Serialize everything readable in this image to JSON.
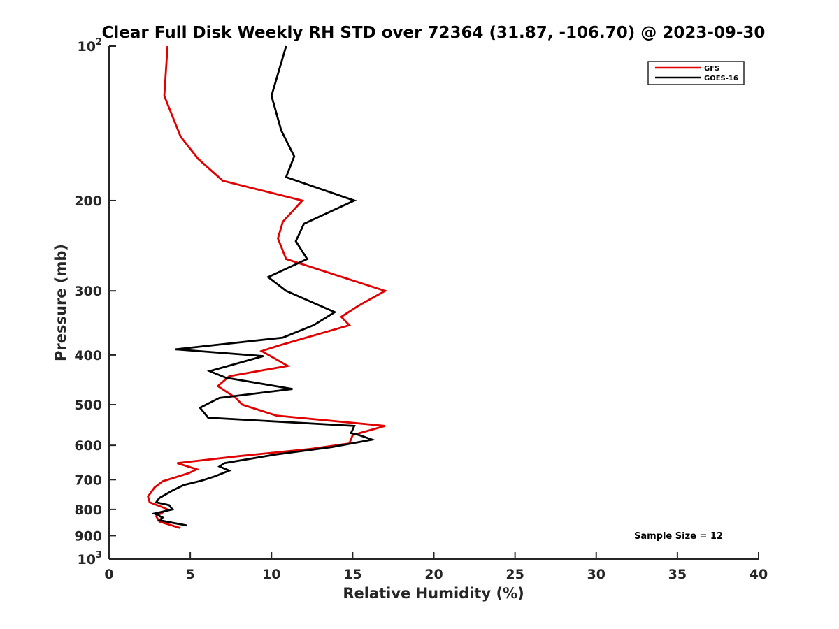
{
  "chart_data": {
    "type": "line",
    "title": "Clear Full Disk Weekly RH STD over 72364 (31.87, -106.70) @ 2023-09-30",
    "xlabel": "Relative Humidity (%)",
    "ylabel": "Pressure (mb)",
    "xlim": [
      0,
      40
    ],
    "ylim": [
      100,
      1000
    ],
    "y_scale": "log",
    "y_reversed": true,
    "x_ticks": [
      {
        "value": 0,
        "label": "0"
      },
      {
        "value": 5,
        "label": "5"
      },
      {
        "value": 10,
        "label": "10"
      },
      {
        "value": 15,
        "label": "15"
      },
      {
        "value": 20,
        "label": "20"
      },
      {
        "value": 25,
        "label": "25"
      },
      {
        "value": 30,
        "label": "30"
      },
      {
        "value": 35,
        "label": "35"
      },
      {
        "value": 40,
        "label": "40"
      }
    ],
    "y_ticks": [
      {
        "value": 100,
        "base": "10",
        "exp": "2"
      },
      {
        "value": 200,
        "base": "200",
        "exp": ""
      },
      {
        "value": 300,
        "base": "300",
        "exp": ""
      },
      {
        "value": 400,
        "base": "400",
        "exp": ""
      },
      {
        "value": 500,
        "base": "500",
        "exp": ""
      },
      {
        "value": 600,
        "base": "600",
        "exp": ""
      },
      {
        "value": 700,
        "base": "700",
        "exp": ""
      },
      {
        "value": 800,
        "base": "800",
        "exp": ""
      },
      {
        "value": 900,
        "base": "900",
        "exp": ""
      },
      {
        "value": 1000,
        "base": "10",
        "exp": "3"
      }
    ],
    "series": [
      {
        "name": "GFS",
        "color": "#e00000",
        "points": [
          [
            3.6,
            100
          ],
          [
            3.4,
            125
          ],
          [
            4.4,
            150
          ],
          [
            5.5,
            166
          ],
          [
            7.0,
            183
          ],
          [
            11.9,
            200
          ],
          [
            10.7,
            220
          ],
          [
            10.4,
            237
          ],
          [
            10.9,
            260
          ],
          [
            17.0,
            300
          ],
          [
            15.4,
            320
          ],
          [
            14.3,
            337
          ],
          [
            14.8,
            350
          ],
          [
            10.5,
            383
          ],
          [
            9.4,
            393
          ],
          [
            11.0,
            420
          ],
          [
            7.4,
            440
          ],
          [
            6.7,
            460
          ],
          [
            7.8,
            485
          ],
          [
            8.2,
            500
          ],
          [
            10.3,
            525
          ],
          [
            17.0,
            550
          ],
          [
            15.0,
            573
          ],
          [
            14.8,
            595
          ],
          [
            12.4,
            610
          ],
          [
            8.0,
            630
          ],
          [
            4.2,
            650
          ],
          [
            5.4,
            668
          ],
          [
            4.9,
            680
          ],
          [
            3.3,
            705
          ],
          [
            2.8,
            725
          ],
          [
            2.4,
            755
          ],
          [
            2.5,
            775
          ],
          [
            3.2,
            790
          ],
          [
            3.6,
            800
          ],
          [
            2.9,
            825
          ],
          [
            3.1,
            845
          ],
          [
            4.4,
            870
          ]
        ]
      },
      {
        "name": "GOES-16",
        "color": "#000000",
        "points": [
          [
            10.9,
            100
          ],
          [
            10.0,
            125
          ],
          [
            10.6,
            146
          ],
          [
            11.4,
            164
          ],
          [
            10.9,
            180
          ],
          [
            15.1,
            200
          ],
          [
            12.0,
            222
          ],
          [
            11.5,
            240
          ],
          [
            12.2,
            260
          ],
          [
            9.8,
            282
          ],
          [
            10.9,
            300
          ],
          [
            13.9,
            330
          ],
          [
            12.6,
            350
          ],
          [
            10.7,
            370
          ],
          [
            4.1,
            390
          ],
          [
            9.5,
            402
          ],
          [
            6.2,
            430
          ],
          [
            7.2,
            443
          ],
          [
            11.3,
            466
          ],
          [
            6.8,
            485
          ],
          [
            5.6,
            507
          ],
          [
            6.1,
            530
          ],
          [
            15.1,
            550
          ],
          [
            14.9,
            568
          ],
          [
            15.4,
            573
          ],
          [
            16.2,
            585
          ],
          [
            13.7,
            605
          ],
          [
            10.3,
            625
          ],
          [
            7.1,
            650
          ],
          [
            6.8,
            660
          ],
          [
            7.4,
            672
          ],
          [
            6.5,
            690
          ],
          [
            5.7,
            703
          ],
          [
            4.6,
            717
          ],
          [
            3.9,
            735
          ],
          [
            3.1,
            760
          ],
          [
            2.9,
            775
          ],
          [
            3.7,
            785
          ],
          [
            3.9,
            800
          ],
          [
            2.8,
            815
          ],
          [
            3.3,
            830
          ],
          [
            3.1,
            840
          ],
          [
            4.8,
            860
          ]
        ]
      }
    ],
    "legend_position": "top-right",
    "annotation": "Sample Size = 12",
    "grid": false
  }
}
